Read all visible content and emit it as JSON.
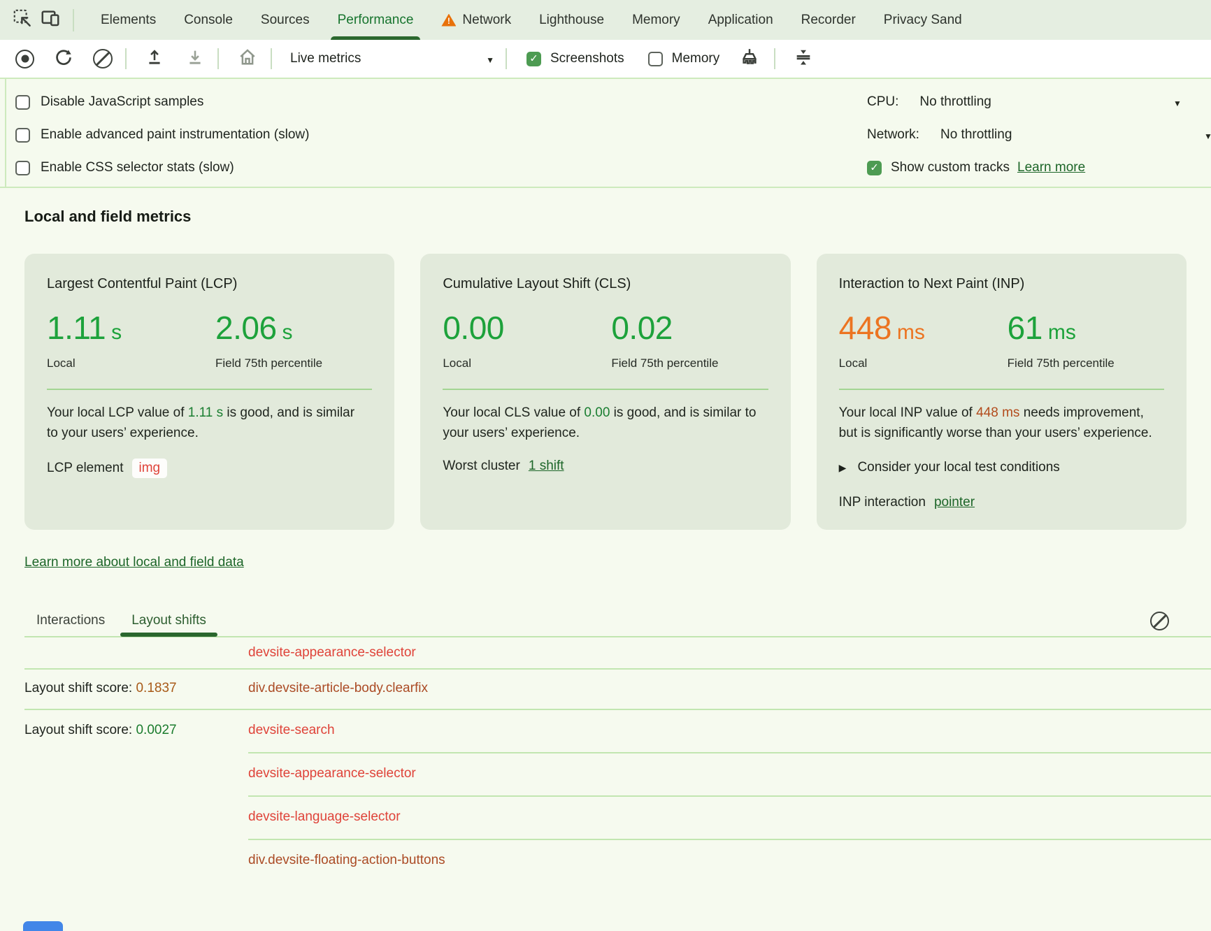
{
  "tabbar": {
    "tabs": [
      {
        "label": "Elements"
      },
      {
        "label": "Console"
      },
      {
        "label": "Sources"
      },
      {
        "label": "Performance",
        "active": true
      },
      {
        "label": "Network",
        "warning": true
      },
      {
        "label": "Lighthouse"
      },
      {
        "label": "Memory"
      },
      {
        "label": "Application"
      },
      {
        "label": "Recorder"
      },
      {
        "label": "Privacy Sand"
      }
    ]
  },
  "toolbar": {
    "mode_select": "Live metrics",
    "screenshots_label": "Screenshots",
    "memory_label": "Memory",
    "screenshots_checked": true,
    "memory_checked": false
  },
  "settings": {
    "checkboxes": [
      "Disable JavaScript samples",
      "Enable advanced paint instrumentation (slow)",
      "Enable CSS selector stats (slow)"
    ],
    "cpu_label": "CPU:",
    "cpu_value": "No throttling",
    "network_label": "Network:",
    "network_value": "No throttling",
    "custom_tracks_label": "Show custom tracks",
    "custom_tracks_checked": true,
    "learn_more": "Learn more"
  },
  "metrics": {
    "heading": "Local and field metrics",
    "cards": [
      {
        "title": "Largest Contentful Paint (LCP)",
        "local_num": "1.11",
        "local_unit": "s",
        "local_label": "Local",
        "local_status": "good",
        "field_num": "2.06",
        "field_unit": "s",
        "field_label": "Field 75th percentile",
        "field_status": "good",
        "desc_pre": "Your local LCP value of ",
        "desc_value": "1.11 s",
        "desc_post": " is good, and is similar to your users’ experience.",
        "footer_label": "LCP element",
        "footer_chip": "img"
      },
      {
        "title": "Cumulative Layout Shift (CLS)",
        "local_num": "0.00",
        "local_unit": "",
        "local_label": "Local",
        "local_status": "good",
        "field_num": "0.02",
        "field_unit": "",
        "field_label": "Field 75th percentile",
        "field_status": "good",
        "desc_pre": "Your local CLS value of ",
        "desc_value": "0.00",
        "desc_post": " is good, and is similar to your users’ experience.",
        "footer_label": "Worst cluster",
        "footer_link": "1 shift"
      },
      {
        "title": "Interaction to Next Paint (INP)",
        "local_num": "448",
        "local_unit": "ms",
        "local_label": "Local",
        "local_status": "needs-improvement",
        "field_num": "61",
        "field_unit": "ms",
        "field_label": "Field 75th percentile",
        "field_status": "good",
        "desc_pre": "Your local INP value of ",
        "desc_value": "448 ms",
        "desc_post": " needs improvement, but is significantly worse than your users’ experience.",
        "expand_label": "Consider your local test conditions",
        "footer_label": "INP interaction",
        "footer_link": "pointer"
      }
    ],
    "learn_more_link": "Learn more about local and field data"
  },
  "log": {
    "tabs": [
      {
        "label": "Interactions"
      },
      {
        "label": "Layout shifts",
        "active": true
      }
    ],
    "rows": [
      {
        "element": "devsite-appearance-selector",
        "tone": "red",
        "sep": "none"
      },
      {
        "score_label": "Layout shift score: ",
        "score": "0.1837",
        "score_tone": "warn",
        "element": "div.devsite-article-body.clearfix",
        "tone": "brick",
        "sep": "full"
      },
      {
        "score_label": "Layout shift score: ",
        "score": "0.0027",
        "score_tone": "good",
        "element": "devsite-search",
        "tone": "red",
        "sep": "full"
      },
      {
        "element": "devsite-appearance-selector",
        "tone": "red",
        "sep": "indent"
      },
      {
        "element": "devsite-language-selector",
        "tone": "red",
        "sep": "indent"
      },
      {
        "element": "div.devsite-floating-action-buttons",
        "tone": "brick",
        "sep": "indent"
      }
    ]
  },
  "icons": {
    "inspect": "inspect-cursor",
    "device": "device-toolbar",
    "record": "record",
    "reload": "reload",
    "clear": "block-circle",
    "load_profile": "upload",
    "save_profile": "download",
    "home": "home",
    "gc": "brush",
    "collapse": "collapse-panel",
    "dropdown_glyph": "▼",
    "check_glyph": "✓",
    "warning_glyph": "!",
    "expand_glyph": "▶"
  },
  "colors": {
    "accent_green": "#1da23b",
    "warn_orange": "#ec7421",
    "inline_good": "#1a7e31",
    "inline_warn": "#b34c1d",
    "link_green": "#1d6629",
    "element_red": "#df4339",
    "element_brick": "#ab4b25",
    "score_warn": "#a85a18",
    "score_good": "#1b7c2e",
    "card_bg": "#e2eadb",
    "tabbar_bg": "#e5eee1",
    "blue_thumbnail": "#4286e8"
  }
}
